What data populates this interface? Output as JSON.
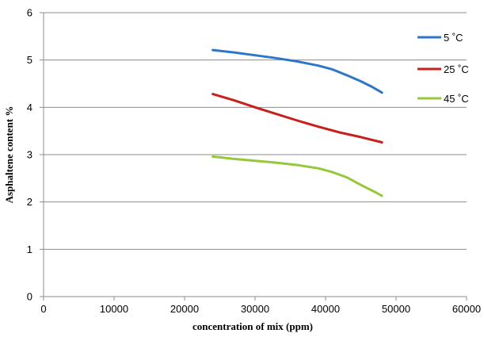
{
  "chart_data": {
    "type": "line",
    "title": "",
    "xlabel": "concentration of mix (ppm)",
    "ylabel": "Asphaltene content %",
    "xlim": [
      0,
      60000
    ],
    "ylim": [
      0,
      6
    ],
    "x_ticks": [
      0,
      10000,
      20000,
      30000,
      40000,
      50000,
      60000
    ],
    "y_ticks": [
      0,
      1,
      2,
      3,
      4,
      5,
      6
    ],
    "grid": "horizontal",
    "legend_position": "right",
    "series": [
      {
        "name": "5 ˚C",
        "color": "#2f76c9",
        "points": [
          [
            24000,
            5.21
          ],
          [
            27000,
            5.16
          ],
          [
            30000,
            5.1
          ],
          [
            33000,
            5.04
          ],
          [
            36000,
            4.97
          ],
          [
            39000,
            4.88
          ],
          [
            41000,
            4.8
          ],
          [
            43000,
            4.68
          ],
          [
            45000,
            4.55
          ],
          [
            46500,
            4.44
          ],
          [
            48000,
            4.31
          ]
        ]
      },
      {
        "name": "25 ˚C",
        "color": "#c8201c",
        "points": [
          [
            24000,
            4.28
          ],
          [
            27000,
            4.15
          ],
          [
            30000,
            4.0
          ],
          [
            33000,
            3.86
          ],
          [
            36000,
            3.72
          ],
          [
            39000,
            3.59
          ],
          [
            42000,
            3.47
          ],
          [
            45000,
            3.37
          ],
          [
            48000,
            3.26
          ]
        ]
      },
      {
        "name": "45 ˚C",
        "color": "#95c93a",
        "points": [
          [
            24000,
            2.96
          ],
          [
            27000,
            2.91
          ],
          [
            30000,
            2.87
          ],
          [
            33000,
            2.83
          ],
          [
            36000,
            2.78
          ],
          [
            39000,
            2.71
          ],
          [
            41000,
            2.63
          ],
          [
            43000,
            2.52
          ],
          [
            45000,
            2.36
          ],
          [
            47000,
            2.21
          ],
          [
            48000,
            2.13
          ]
        ]
      }
    ]
  }
}
